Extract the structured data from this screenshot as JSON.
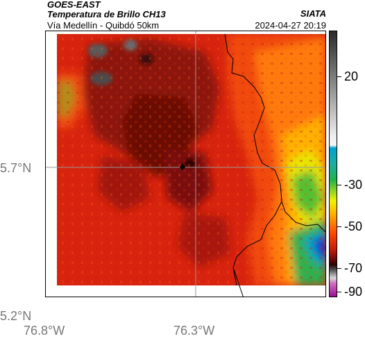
{
  "header": {
    "satellite": "GOES-EAST",
    "product": "Temperatura de Brillo CH13",
    "location": "Vía Medellín - Quibdó 50km",
    "organization": "SIATA",
    "timestamp": "2024-04-27 20:19"
  },
  "map": {
    "lat_labels": [
      "5.7°N",
      "5.2°N"
    ],
    "lon_labels": [
      "76.8°W",
      "76.3°W"
    ],
    "marker": "location-marker"
  },
  "colorbar": {
    "ticks": [
      "20",
      "-30",
      "-50",
      "-70",
      "-90"
    ],
    "tick_values": [
      20,
      -30,
      -50,
      -70,
      -90
    ],
    "range": [
      -95,
      40
    ],
    "colors": {
      "warm_gray": "#4a4a4a",
      "cyan": "#00bcd4",
      "green": "#22b14c",
      "yellow": "#f2f200",
      "orange": "#ff7f00",
      "red": "#e8280c",
      "dark_red": "#5a0a0a",
      "magenta": "#c020a0"
    }
  }
}
